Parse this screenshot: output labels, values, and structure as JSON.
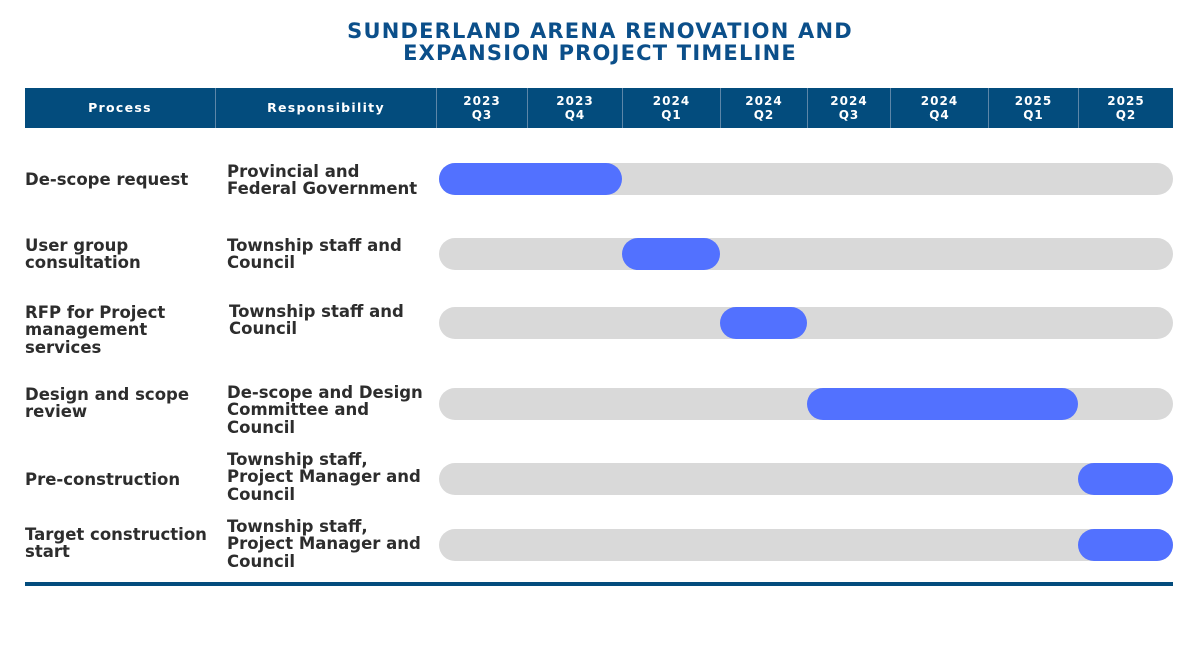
{
  "title": {
    "line1": "SUNDERLAND ARENA RENOVATION AND",
    "line2": "EXPANSION PROJECT TIMELINE"
  },
  "header": {
    "process": "Process",
    "responsibility": "Responsibility",
    "quarters": [
      {
        "year": "2023",
        "q": "Q3"
      },
      {
        "year": "2023",
        "q": "Q4"
      },
      {
        "year": "2024",
        "q": "Q1"
      },
      {
        "year": "2024",
        "q": "Q2"
      },
      {
        "year": "2024",
        "q": "Q3"
      },
      {
        "year": "2024",
        "q": "Q4"
      },
      {
        "year": "2025",
        "q": "Q1"
      },
      {
        "year": "2025",
        "q": "Q2"
      }
    ]
  },
  "colors": {
    "header_bg": "#034c7d",
    "title": "#0b4f8a",
    "bar": "#5271ff",
    "track": "#d9d9d9"
  },
  "chart_data": {
    "type": "gantt",
    "title": "SUNDERLAND ARENA RENOVATION AND EXPANSION PROJECT TIMELINE",
    "x_categories": [
      "2023 Q3",
      "2023 Q4",
      "2024 Q1",
      "2024 Q2",
      "2024 Q3",
      "2024 Q4",
      "2025 Q1",
      "2025 Q2"
    ],
    "tasks": [
      {
        "process": "De-scope request",
        "responsibility": "Provincial and Federal Government",
        "start": "2023 Q3",
        "end": "2023 Q4"
      },
      {
        "process": "User group consultation",
        "responsibility": "Township staff and Council",
        "start": "2024 Q1",
        "end": "2024 Q1"
      },
      {
        "process": "RFP for Project management services",
        "responsibility": "Township staff and Council",
        "start": "2024 Q2",
        "end": "2024 Q2"
      },
      {
        "process": "Design and scope review",
        "responsibility": "De-scope and Design Committee and Council",
        "start": "2024 Q3",
        "end": "2025 Q1"
      },
      {
        "process": "Pre-construction",
        "responsibility": "Township staff, Project Manager and Council",
        "start": "2025 Q2",
        "end": "2025 Q2"
      },
      {
        "process": "Target construction start",
        "responsibility": "Township staff, Project Manager and Council",
        "start": "2025 Q2",
        "end": "2025 Q2"
      }
    ]
  }
}
